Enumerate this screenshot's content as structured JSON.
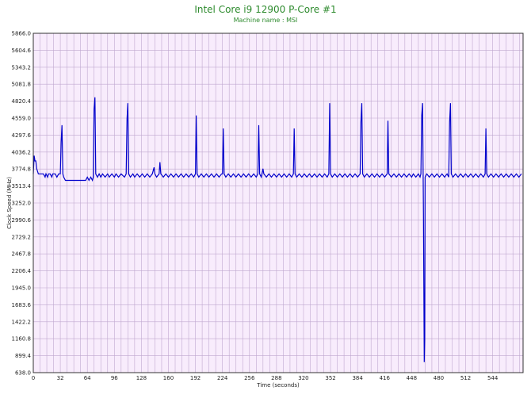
{
  "chart_data": {
    "type": "line",
    "title": "Intel Core i9 12900 P-Core #1",
    "subtitle": "Machine name : MSI",
    "xlabel": "Time (seconds)",
    "ylabel": "Clock Speed (MHz)",
    "xlim": [
      0,
      580
    ],
    "ylim": [
      638.0,
      5866.0
    ],
    "x_ticks": [
      0,
      32,
      64,
      96,
      128,
      160,
      192,
      224,
      256,
      288,
      320,
      352,
      384,
      416,
      448,
      480,
      512,
      544
    ],
    "y_ticks": [
      "638.0",
      "899.4",
      "1160.8",
      "1422.2",
      "1683.6",
      "1945.0",
      "2206.4",
      "2467.8",
      "2729.2",
      "2990.6",
      "3252.0",
      "3513.4",
      "3774.8",
      "4036.2",
      "4297.6",
      "4559.0",
      "4820.4",
      "5081.8",
      "5343.2",
      "5604.6",
      "5866.0"
    ],
    "grid": true,
    "colors": {
      "line": "#0000cc",
      "plot_bg": "#f8ecfc",
      "grid": "#c0a8d0",
      "title": "#2e8b2e"
    },
    "series": [
      {
        "values": [
          [
            0,
            3700
          ],
          [
            1,
            3980
          ],
          [
            2,
            3900
          ],
          [
            3,
            3900
          ],
          [
            4,
            3780
          ],
          [
            6,
            3700
          ],
          [
            12,
            3700
          ],
          [
            14,
            3650
          ],
          [
            15,
            3700
          ],
          [
            17,
            3650
          ],
          [
            18,
            3700
          ],
          [
            20,
            3700
          ],
          [
            22,
            3650
          ],
          [
            23,
            3700
          ],
          [
            26,
            3700
          ],
          [
            28,
            3650
          ],
          [
            30,
            3700
          ],
          [
            31,
            3700
          ],
          [
            32,
            3700
          ],
          [
            33,
            4200
          ],
          [
            34,
            4450
          ],
          [
            35,
            3700
          ],
          [
            36,
            3650
          ],
          [
            38,
            3600
          ],
          [
            62,
            3600
          ],
          [
            64,
            3650
          ],
          [
            66,
            3600
          ],
          [
            68,
            3650
          ],
          [
            70,
            3600
          ],
          [
            71,
            3650
          ],
          [
            72,
            4700
          ],
          [
            73,
            4880
          ],
          [
            74,
            3700
          ],
          [
            76,
            3650
          ],
          [
            78,
            3700
          ],
          [
            80,
            3650
          ],
          [
            82,
            3700
          ],
          [
            85,
            3650
          ],
          [
            88,
            3700
          ],
          [
            90,
            3650
          ],
          [
            93,
            3700
          ],
          [
            96,
            3650
          ],
          [
            98,
            3700
          ],
          [
            101,
            3650
          ],
          [
            104,
            3700
          ],
          [
            108,
            3650
          ],
          [
            110,
            3700
          ],
          [
            111,
            4550
          ],
          [
            112,
            4790
          ],
          [
            113,
            3700
          ],
          [
            115,
            3650
          ],
          [
            118,
            3700
          ],
          [
            120,
            3650
          ],
          [
            123,
            3700
          ],
          [
            126,
            3650
          ],
          [
            129,
            3700
          ],
          [
            132,
            3650
          ],
          [
            135,
            3700
          ],
          [
            138,
            3650
          ],
          [
            141,
            3700
          ],
          [
            143,
            3800
          ],
          [
            144,
            3700
          ],
          [
            146,
            3650
          ],
          [
            149,
            3700
          ],
          [
            150,
            3880
          ],
          [
            151,
            3700
          ],
          [
            154,
            3650
          ],
          [
            157,
            3700
          ],
          [
            160,
            3650
          ],
          [
            163,
            3700
          ],
          [
            166,
            3650
          ],
          [
            169,
            3700
          ],
          [
            172,
            3650
          ],
          [
            175,
            3700
          ],
          [
            178,
            3650
          ],
          [
            181,
            3700
          ],
          [
            184,
            3650
          ],
          [
            187,
            3700
          ],
          [
            190,
            3650
          ],
          [
            192,
            3700
          ],
          [
            193,
            4600
          ],
          [
            194,
            3700
          ],
          [
            196,
            3650
          ],
          [
            199,
            3700
          ],
          [
            202,
            3650
          ],
          [
            205,
            3700
          ],
          [
            208,
            3650
          ],
          [
            211,
            3700
          ],
          [
            214,
            3650
          ],
          [
            217,
            3700
          ],
          [
            220,
            3650
          ],
          [
            223,
            3700
          ],
          [
            224,
            3700
          ],
          [
            225,
            4400
          ],
          [
            226,
            3700
          ],
          [
            228,
            3650
          ],
          [
            231,
            3700
          ],
          [
            234,
            3650
          ],
          [
            237,
            3700
          ],
          [
            240,
            3650
          ],
          [
            243,
            3700
          ],
          [
            246,
            3650
          ],
          [
            249,
            3700
          ],
          [
            252,
            3650
          ],
          [
            255,
            3700
          ],
          [
            258,
            3650
          ],
          [
            261,
            3700
          ],
          [
            264,
            3650
          ],
          [
            266,
            3700
          ],
          [
            267,
            4450
          ],
          [
            268,
            3700
          ],
          [
            270,
            3650
          ],
          [
            272,
            3780
          ],
          [
            273,
            3700
          ],
          [
            276,
            3650
          ],
          [
            279,
            3700
          ],
          [
            282,
            3650
          ],
          [
            285,
            3700
          ],
          [
            288,
            3650
          ],
          [
            291,
            3700
          ],
          [
            294,
            3650
          ],
          [
            297,
            3700
          ],
          [
            300,
            3650
          ],
          [
            303,
            3700
          ],
          [
            306,
            3650
          ],
          [
            308,
            3700
          ],
          [
            309,
            4400
          ],
          [
            310,
            3700
          ],
          [
            312,
            3650
          ],
          [
            315,
            3700
          ],
          [
            318,
            3650
          ],
          [
            321,
            3700
          ],
          [
            324,
            3650
          ],
          [
            327,
            3700
          ],
          [
            330,
            3650
          ],
          [
            333,
            3700
          ],
          [
            336,
            3650
          ],
          [
            339,
            3700
          ],
          [
            342,
            3650
          ],
          [
            345,
            3700
          ],
          [
            348,
            3650
          ],
          [
            350,
            3700
          ],
          [
            351,
            4790
          ],
          [
            352,
            3700
          ],
          [
            354,
            3650
          ],
          [
            357,
            3700
          ],
          [
            360,
            3650
          ],
          [
            363,
            3700
          ],
          [
            366,
            3650
          ],
          [
            369,
            3700
          ],
          [
            372,
            3650
          ],
          [
            375,
            3700
          ],
          [
            378,
            3650
          ],
          [
            381,
            3700
          ],
          [
            384,
            3650
          ],
          [
            387,
            3700
          ],
          [
            388,
            4500
          ],
          [
            389,
            4790
          ],
          [
            390,
            3700
          ],
          [
            392,
            3650
          ],
          [
            395,
            3700
          ],
          [
            398,
            3650
          ],
          [
            401,
            3700
          ],
          [
            404,
            3650
          ],
          [
            407,
            3700
          ],
          [
            410,
            3650
          ],
          [
            413,
            3700
          ],
          [
            416,
            3650
          ],
          [
            419,
            3700
          ],
          [
            420,
            4520
          ],
          [
            421,
            3700
          ],
          [
            424,
            3650
          ],
          [
            427,
            3700
          ],
          [
            430,
            3650
          ],
          [
            433,
            3700
          ],
          [
            436,
            3650
          ],
          [
            439,
            3700
          ],
          [
            442,
            3650
          ],
          [
            445,
            3700
          ],
          [
            448,
            3650
          ],
          [
            450,
            3700
          ],
          [
            453,
            3650
          ],
          [
            456,
            3700
          ],
          [
            458,
            3650
          ],
          [
            459,
            3700
          ],
          [
            460,
            4600
          ],
          [
            461,
            4790
          ],
          [
            462,
            3100
          ],
          [
            463,
            800
          ],
          [
            463.5,
            1150
          ],
          [
            464,
            3650
          ],
          [
            466,
            3700
          ],
          [
            469,
            3650
          ],
          [
            472,
            3700
          ],
          [
            475,
            3650
          ],
          [
            478,
            3700
          ],
          [
            481,
            3650
          ],
          [
            484,
            3700
          ],
          [
            487,
            3650
          ],
          [
            490,
            3700
          ],
          [
            492,
            3650
          ],
          [
            493,
            4500
          ],
          [
            494,
            4790
          ],
          [
            495,
            3700
          ],
          [
            497,
            3650
          ],
          [
            500,
            3700
          ],
          [
            503,
            3650
          ],
          [
            506,
            3700
          ],
          [
            509,
            3650
          ],
          [
            512,
            3700
          ],
          [
            515,
            3650
          ],
          [
            518,
            3700
          ],
          [
            521,
            3650
          ],
          [
            524,
            3700
          ],
          [
            527,
            3650
          ],
          [
            530,
            3700
          ],
          [
            533,
            3650
          ],
          [
            535,
            3700
          ],
          [
            536,
            4400
          ],
          [
            537,
            3700
          ],
          [
            539,
            3650
          ],
          [
            542,
            3700
          ],
          [
            545,
            3650
          ],
          [
            548,
            3700
          ],
          [
            551,
            3650
          ],
          [
            554,
            3700
          ],
          [
            557,
            3650
          ],
          [
            560,
            3700
          ],
          [
            563,
            3650
          ],
          [
            566,
            3700
          ],
          [
            569,
            3650
          ],
          [
            572,
            3700
          ],
          [
            575,
            3650
          ],
          [
            578,
            3700
          ]
        ]
      }
    ]
  }
}
